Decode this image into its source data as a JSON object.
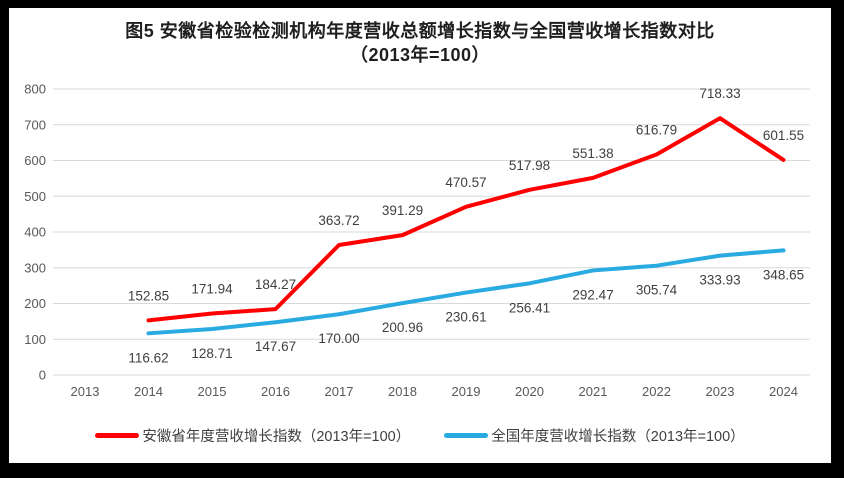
{
  "figure": {
    "title_line1": "图5  安徽省检验检测机构年度营收总额增长指数与全国营收增长指数对比",
    "title_line2": "（2013年=100）"
  },
  "chart_data": {
    "type": "line",
    "title": "图5  安徽省检验检测机构年度营收总额增长指数与全国营收增长指数对比",
    "subtitle": "（2013年=100）",
    "categories": [
      "2013",
      "2014",
      "2015",
      "2016",
      "2017",
      "2018",
      "2019",
      "2020",
      "2021",
      "2022",
      "2023",
      "2024"
    ],
    "series": [
      {
        "name": "安徽省年度营收增长指数（2013年=100）",
        "color": "#FF0000",
        "start_index": 1,
        "values": [
          152.85,
          171.94,
          184.27,
          363.72,
          391.29,
          470.57,
          517.98,
          551.38,
          616.79,
          718.33,
          601.55
        ],
        "label_position": "above"
      },
      {
        "name": "全国年度营收增长指数（2013年=100）",
        "color": "#29ABE2",
        "start_index": 1,
        "values": [
          116.62,
          128.71,
          147.67,
          170.0,
          200.96,
          230.61,
          256.41,
          292.47,
          305.74,
          333.93,
          348.65
        ],
        "label_position": "below"
      }
    ],
    "ylim": [
      0,
      800
    ],
    "ytick_step": 100,
    "yticks": [
      "0",
      "100",
      "200",
      "300",
      "400",
      "500",
      "600",
      "700",
      "800"
    ],
    "grid": true,
    "legend_position": "bottom",
    "gridline_color": "#D9D9D9",
    "axis_label_color": "#595959",
    "data_label_color": "#404040"
  }
}
